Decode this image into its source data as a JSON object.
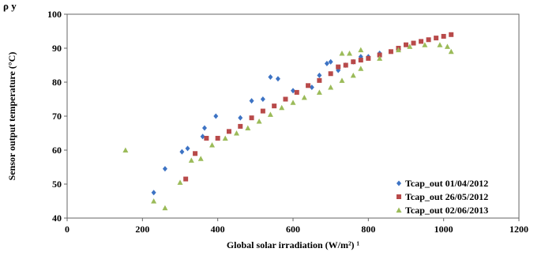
{
  "header_fragment": "ρ     y",
  "chart_data": {
    "type": "scatter",
    "xlabel": "Global solar irradiation (W/m²) ¹",
    "ylabel": "Sensor output temperature (°C)",
    "xlim": [
      0,
      1200
    ],
    "ylim": [
      40,
      100
    ],
    "x_ticks": [
      "0",
      "200",
      "400",
      "600",
      "800",
      "1000",
      "1200"
    ],
    "y_ticks": [
      "40",
      "50",
      "60",
      "70",
      "80",
      "90",
      "100"
    ],
    "grid": false,
    "legend_position": "bottom-right",
    "series": [
      {
        "name": "Tcap_out 01/04/2012",
        "marker": "diamond",
        "color": "#3d73c4",
        "points": [
          [
            230,
            47.5
          ],
          [
            260,
            54.5
          ],
          [
            305,
            59.5
          ],
          [
            320,
            60.5
          ],
          [
            360,
            64
          ],
          [
            365,
            66.5
          ],
          [
            395,
            70
          ],
          [
            460,
            69.5
          ],
          [
            490,
            74.5
          ],
          [
            520,
            75
          ],
          [
            540,
            81.5
          ],
          [
            560,
            81
          ],
          [
            600,
            77.5
          ],
          [
            650,
            78.5
          ],
          [
            670,
            82
          ],
          [
            690,
            85.5
          ],
          [
            700,
            86
          ],
          [
            720,
            83.5
          ],
          [
            740,
            85
          ],
          [
            760,
            86
          ],
          [
            780,
            87.5
          ],
          [
            800,
            87.5
          ],
          [
            830,
            88.5
          ]
        ]
      },
      {
        "name": "Tcap_out 26/05/2012",
        "marker": "square",
        "color": "#b84a4a",
        "points": [
          [
            315,
            51.5
          ],
          [
            340,
            59
          ],
          [
            370,
            63.5
          ],
          [
            400,
            63.5
          ],
          [
            430,
            65.5
          ],
          [
            460,
            67
          ],
          [
            490,
            69.5
          ],
          [
            520,
            71.5
          ],
          [
            550,
            73
          ],
          [
            580,
            75
          ],
          [
            610,
            77
          ],
          [
            640,
            79
          ],
          [
            670,
            80.5
          ],
          [
            700,
            82.5
          ],
          [
            720,
            84.5
          ],
          [
            740,
            85
          ],
          [
            760,
            86
          ],
          [
            780,
            86.5
          ],
          [
            800,
            87
          ],
          [
            830,
            88
          ],
          [
            860,
            89
          ],
          [
            880,
            90
          ],
          [
            900,
            91
          ],
          [
            920,
            91.5
          ],
          [
            940,
            92
          ],
          [
            960,
            92.5
          ],
          [
            980,
            93
          ],
          [
            1000,
            93.5
          ],
          [
            1020,
            94
          ]
        ]
      },
      {
        "name": "Tcap_out 02/06/2013",
        "marker": "triangle",
        "color": "#9bbb59",
        "points": [
          [
            155,
            60
          ],
          [
            230,
            45
          ],
          [
            260,
            43
          ],
          [
            300,
            50.5
          ],
          [
            330,
            57
          ],
          [
            355,
            57.5
          ],
          [
            385,
            61.5
          ],
          [
            420,
            63.5
          ],
          [
            450,
            65
          ],
          [
            480,
            66.5
          ],
          [
            510,
            68.5
          ],
          [
            540,
            70.5
          ],
          [
            570,
            72.5
          ],
          [
            600,
            74
          ],
          [
            630,
            75.5
          ],
          [
            670,
            77
          ],
          [
            700,
            78.5
          ],
          [
            730,
            80.5
          ],
          [
            730,
            88.5
          ],
          [
            750,
            88.5
          ],
          [
            760,
            82
          ],
          [
            780,
            84
          ],
          [
            780,
            89.5
          ],
          [
            830,
            87
          ],
          [
            880,
            89.5
          ],
          [
            910,
            90.5
          ],
          [
            950,
            91
          ],
          [
            990,
            91
          ],
          [
            1010,
            90.5
          ],
          [
            1020,
            89
          ]
        ]
      }
    ]
  }
}
